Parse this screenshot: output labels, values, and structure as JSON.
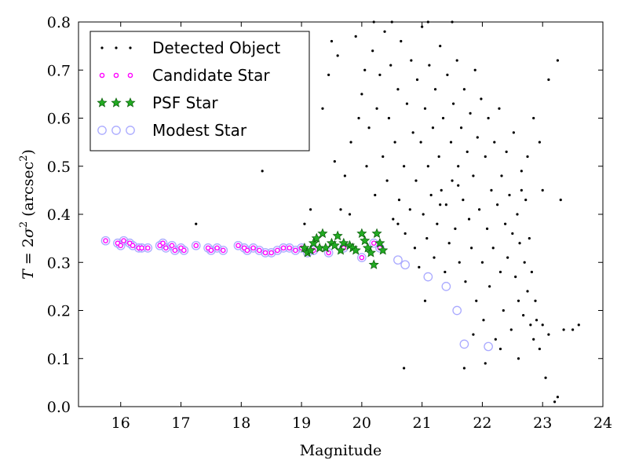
{
  "chart_data": {
    "type": "scatter",
    "xlabel": "Magnitude",
    "ylabel_parts": {
      "var": "T",
      "eq": " = 2",
      "sigma": "σ",
      "sq": "2",
      "unit_open": " (arcsec",
      "unit_sq": "2",
      "unit_close": ")"
    },
    "xlim": [
      15.3,
      24
    ],
    "ylim": [
      0.0,
      0.8
    ],
    "x_ticks": [
      16,
      17,
      18,
      19,
      20,
      21,
      22,
      23,
      24
    ],
    "y_ticks": [
      "0.0",
      "0.1",
      "0.2",
      "0.3",
      "0.4",
      "0.5",
      "0.6",
      "0.7",
      "0.8"
    ],
    "legend_position": "top-left",
    "grid": false,
    "series": [
      {
        "name": "Detected Object",
        "marker": "dot",
        "color": "#000000",
        "points": [
          [
            17.25,
            0.38
          ],
          [
            18.35,
            0.49
          ],
          [
            19.05,
            0.38
          ],
          [
            19.15,
            0.41
          ],
          [
            19.35,
            0.62
          ],
          [
            19.45,
            0.69
          ],
          [
            19.5,
            0.76
          ],
          [
            19.55,
            0.51
          ],
          [
            19.6,
            0.73
          ],
          [
            19.65,
            0.41
          ],
          [
            19.72,
            0.48
          ],
          [
            19.82,
            0.55
          ],
          [
            19.9,
            0.77
          ],
          [
            19.95,
            0.6
          ],
          [
            20.0,
            0.65
          ],
          [
            20.05,
            0.7
          ],
          [
            20.08,
            0.5
          ],
          [
            20.12,
            0.58
          ],
          [
            20.18,
            0.74
          ],
          [
            20.22,
            0.44
          ],
          [
            20.25,
            0.62
          ],
          [
            20.3,
            0.69
          ],
          [
            20.35,
            0.52
          ],
          [
            20.38,
            0.78
          ],
          [
            20.42,
            0.47
          ],
          [
            20.45,
            0.6
          ],
          [
            20.48,
            0.71
          ],
          [
            20.52,
            0.39
          ],
          [
            20.55,
            0.55
          ],
          [
            20.6,
            0.66
          ],
          [
            20.62,
            0.43
          ],
          [
            20.65,
            0.76
          ],
          [
            20.7,
            0.5
          ],
          [
            20.72,
            0.36
          ],
          [
            20.75,
            0.63
          ],
          [
            20.8,
            0.41
          ],
          [
            20.82,
            0.72
          ],
          [
            20.85,
            0.57
          ],
          [
            20.88,
            0.33
          ],
          [
            20.9,
            0.47
          ],
          [
            20.92,
            0.68
          ],
          [
            20.95,
            0.29
          ],
          [
            20.98,
            0.55
          ],
          [
            21.0,
            0.79
          ],
          [
            21.02,
            0.4
          ],
          [
            21.05,
            0.62
          ],
          [
            21.08,
            0.35
          ],
          [
            21.1,
            0.5
          ],
          [
            21.12,
            0.71
          ],
          [
            21.15,
            0.44
          ],
          [
            21.18,
            0.58
          ],
          [
            21.2,
            0.31
          ],
          [
            21.22,
            0.66
          ],
          [
            21.25,
            0.38
          ],
          [
            21.28,
            0.52
          ],
          [
            21.3,
            0.75
          ],
          [
            21.32,
            0.45
          ],
          [
            21.35,
            0.6
          ],
          [
            21.38,
            0.28
          ],
          [
            21.4,
            0.42
          ],
          [
            21.42,
            0.69
          ],
          [
            21.45,
            0.34
          ],
          [
            21.48,
            0.55
          ],
          [
            21.5,
            0.47
          ],
          [
            21.52,
            0.63
          ],
          [
            21.55,
            0.37
          ],
          [
            21.58,
            0.72
          ],
          [
            21.6,
            0.5
          ],
          [
            21.62,
            0.3
          ],
          [
            21.65,
            0.58
          ],
          [
            21.68,
            0.43
          ],
          [
            21.7,
            0.66
          ],
          [
            21.72,
            0.26
          ],
          [
            21.75,
            0.53
          ],
          [
            21.78,
            0.39
          ],
          [
            21.8,
            0.61
          ],
          [
            21.82,
            0.33
          ],
          [
            21.85,
            0.48
          ],
          [
            21.88,
            0.7
          ],
          [
            21.9,
            0.22
          ],
          [
            21.92,
            0.56
          ],
          [
            21.95,
            0.41
          ],
          [
            21.98,
            0.64
          ],
          [
            22.0,
            0.3
          ],
          [
            22.02,
            0.18
          ],
          [
            22.05,
            0.52
          ],
          [
            22.08,
            0.37
          ],
          [
            22.1,
            0.6
          ],
          [
            22.12,
            0.25
          ],
          [
            22.15,
            0.45
          ],
          [
            22.18,
            0.33
          ],
          [
            22.2,
            0.55
          ],
          [
            22.22,
            0.14
          ],
          [
            22.25,
            0.42
          ],
          [
            22.28,
            0.62
          ],
          [
            22.3,
            0.28
          ],
          [
            22.32,
            0.48
          ],
          [
            22.35,
            0.2
          ],
          [
            22.38,
            0.38
          ],
          [
            22.4,
            0.53
          ],
          [
            22.42,
            0.31
          ],
          [
            22.45,
            0.44
          ],
          [
            22.48,
            0.16
          ],
          [
            22.5,
            0.36
          ],
          [
            22.52,
            0.57
          ],
          [
            22.55,
            0.27
          ],
          [
            22.58,
            0.4
          ],
          [
            22.6,
            0.22
          ],
          [
            22.62,
            0.34
          ],
          [
            22.65,
            0.49
          ],
          [
            22.68,
            0.19
          ],
          [
            22.7,
            0.3
          ],
          [
            22.72,
            0.43
          ],
          [
            22.75,
            0.24
          ],
          [
            22.78,
            0.35
          ],
          [
            22.8,
            0.17
          ],
          [
            22.82,
            0.28
          ],
          [
            22.85,
            0.14
          ],
          [
            22.88,
            0.22
          ],
          [
            22.9,
            0.18
          ],
          [
            22.95,
            0.12
          ],
          [
            23.0,
            0.17
          ],
          [
            23.05,
            0.06
          ],
          [
            23.1,
            0.15
          ],
          [
            23.2,
            0.01
          ],
          [
            23.25,
            0.02
          ],
          [
            23.3,
            0.43
          ],
          [
            23.35,
            0.16
          ],
          [
            23.5,
            0.16
          ],
          [
            23.6,
            0.17
          ],
          [
            22.95,
            0.55
          ],
          [
            23.1,
            0.68
          ],
          [
            23.25,
            0.72
          ],
          [
            22.85,
            0.6
          ],
          [
            23.0,
            0.45
          ],
          [
            19.8,
            0.4
          ],
          [
            20.6,
            0.38
          ],
          [
            20.2,
            0.8
          ],
          [
            20.5,
            0.8
          ],
          [
            21.1,
            0.8
          ],
          [
            21.5,
            0.8
          ],
          [
            21.7,
            0.08
          ],
          [
            22.05,
            0.09
          ],
          [
            22.6,
            0.1
          ],
          [
            22.3,
            0.12
          ],
          [
            20.7,
            0.08
          ],
          [
            21.05,
            0.22
          ],
          [
            21.85,
            0.15
          ],
          [
            22.65,
            0.45
          ],
          [
            22.75,
            0.52
          ],
          [
            21.3,
            0.42
          ],
          [
            21.6,
            0.46
          ]
        ]
      },
      {
        "name": "Candidate Star",
        "marker": "small-circle",
        "color": "#ff00ff",
        "points": [
          [
            15.75,
            0.345
          ],
          [
            15.95,
            0.34
          ],
          [
            16.0,
            0.335
          ],
          [
            16.05,
            0.345
          ],
          [
            16.15,
            0.34
          ],
          [
            16.2,
            0.335
          ],
          [
            16.3,
            0.33
          ],
          [
            16.35,
            0.33
          ],
          [
            16.45,
            0.33
          ],
          [
            16.65,
            0.335
          ],
          [
            16.7,
            0.34
          ],
          [
            16.75,
            0.33
          ],
          [
            16.85,
            0.335
          ],
          [
            16.9,
            0.325
          ],
          [
            17.0,
            0.33
          ],
          [
            17.05,
            0.325
          ],
          [
            17.25,
            0.335
          ],
          [
            17.45,
            0.33
          ],
          [
            17.5,
            0.325
          ],
          [
            17.6,
            0.33
          ],
          [
            17.7,
            0.325
          ],
          [
            17.95,
            0.335
          ],
          [
            18.05,
            0.33
          ],
          [
            18.1,
            0.325
          ],
          [
            18.2,
            0.33
          ],
          [
            18.3,
            0.325
          ],
          [
            18.4,
            0.32
          ],
          [
            18.5,
            0.32
          ],
          [
            18.6,
            0.325
          ],
          [
            18.7,
            0.33
          ],
          [
            18.8,
            0.33
          ],
          [
            18.9,
            0.325
          ],
          [
            19.0,
            0.33
          ],
          [
            19.1,
            0.32
          ],
          [
            19.2,
            0.325
          ],
          [
            19.45,
            0.32
          ],
          [
            19.7,
            0.33
          ],
          [
            20.0,
            0.31
          ],
          [
            20.2,
            0.34
          ],
          [
            20.3,
            0.33
          ]
        ]
      },
      {
        "name": "PSF Star",
        "marker": "star",
        "color": "#22aa22",
        "points": [
          [
            19.05,
            0.33
          ],
          [
            19.1,
            0.32
          ],
          [
            19.15,
            0.325
          ],
          [
            19.2,
            0.34
          ],
          [
            19.25,
            0.35
          ],
          [
            19.3,
            0.33
          ],
          [
            19.35,
            0.36
          ],
          [
            19.4,
            0.33
          ],
          [
            19.5,
            0.34
          ],
          [
            19.55,
            0.335
          ],
          [
            19.6,
            0.355
          ],
          [
            19.65,
            0.325
          ],
          [
            19.7,
            0.34
          ],
          [
            19.8,
            0.335
          ],
          [
            19.85,
            0.33
          ],
          [
            19.9,
            0.325
          ],
          [
            20.0,
            0.36
          ],
          [
            20.05,
            0.345
          ],
          [
            20.1,
            0.33
          ],
          [
            20.15,
            0.32
          ],
          [
            20.2,
            0.295
          ],
          [
            20.25,
            0.36
          ],
          [
            20.3,
            0.34
          ],
          [
            20.35,
            0.325
          ]
        ]
      },
      {
        "name": "Modest Star",
        "marker": "large-circle",
        "color": "#aaaaff",
        "points": [
          [
            15.75,
            0.345
          ],
          [
            15.95,
            0.34
          ],
          [
            16.0,
            0.335
          ],
          [
            16.05,
            0.345
          ],
          [
            16.15,
            0.34
          ],
          [
            16.2,
            0.335
          ],
          [
            16.3,
            0.33
          ],
          [
            16.35,
            0.33
          ],
          [
            16.45,
            0.33
          ],
          [
            16.65,
            0.335
          ],
          [
            16.7,
            0.34
          ],
          [
            16.75,
            0.33
          ],
          [
            16.85,
            0.335
          ],
          [
            16.9,
            0.325
          ],
          [
            17.0,
            0.33
          ],
          [
            17.05,
            0.325
          ],
          [
            17.25,
            0.335
          ],
          [
            17.45,
            0.33
          ],
          [
            17.5,
            0.325
          ],
          [
            17.6,
            0.33
          ],
          [
            17.7,
            0.325
          ],
          [
            17.95,
            0.335
          ],
          [
            18.05,
            0.33
          ],
          [
            18.1,
            0.325
          ],
          [
            18.2,
            0.33
          ],
          [
            18.3,
            0.325
          ],
          [
            18.4,
            0.32
          ],
          [
            18.5,
            0.32
          ],
          [
            18.6,
            0.325
          ],
          [
            18.7,
            0.33
          ],
          [
            18.8,
            0.33
          ],
          [
            18.9,
            0.325
          ],
          [
            19.0,
            0.33
          ],
          [
            19.1,
            0.32
          ],
          [
            19.2,
            0.325
          ],
          [
            19.45,
            0.32
          ],
          [
            19.7,
            0.33
          ],
          [
            20.0,
            0.31
          ],
          [
            20.2,
            0.34
          ],
          [
            20.3,
            0.33
          ],
          [
            20.6,
            0.305
          ],
          [
            20.72,
            0.295
          ],
          [
            21.1,
            0.27
          ],
          [
            21.4,
            0.25
          ],
          [
            21.58,
            0.2
          ],
          [
            21.7,
            0.13
          ],
          [
            22.1,
            0.125
          ]
        ]
      }
    ]
  }
}
